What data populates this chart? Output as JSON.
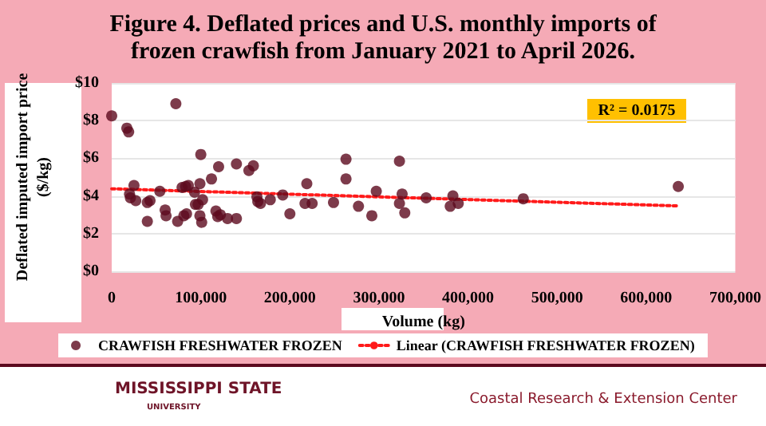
{
  "chart_data": {
    "type": "scatter",
    "title": "Figure 4. Deflated prices and U.S. monthly imports of\nfrozen crawfish from January 2021 to April 2026.",
    "xlabel": "Volume (kg)",
    "ylabel": "Deflated imputed import price\n($/kg)",
    "annotations": [
      "R² = 0.0175",
      "MISSISSIPPI STATE",
      "UNIVERSITY",
      "Coastal Research & Extension Center"
    ],
    "series": [
      {
        "name": "CRAWFISH FRESHWATER FROZEN",
        "color": "#5c0a1e",
        "marker": "circle",
        "x": [
          0,
          17000,
          19000,
          72000,
          20000,
          21000,
          25000,
          27000,
          40000,
          43000,
          40000,
          54000,
          60000,
          61000,
          74000,
          79000,
          83000,
          86000,
          81000,
          84000,
          93000,
          94000,
          97000,
          99000,
          100000,
          102000,
          99000,
          101000,
          112000,
          120000,
          117000,
          119000,
          122000,
          130000,
          140000,
          140000,
          154000,
          159000,
          163000,
          164000,
          167000,
          178000,
          192000,
          200000,
          219000,
          217000,
          225000,
          249000,
          263000,
          263000,
          277000,
          292000,
          297000,
          323000,
          323000,
          326000,
          329000,
          353000,
          380000,
          383000,
          389000,
          462000,
          636000
        ],
        "values": [
          8.25,
          7.6,
          7.4,
          8.9,
          4.1,
          3.9,
          4.55,
          3.75,
          3.65,
          3.75,
          2.65,
          4.25,
          3.25,
          2.95,
          2.65,
          4.45,
          4.5,
          4.55,
          2.95,
          3.05,
          4.2,
          3.55,
          3.55,
          4.65,
          6.2,
          3.8,
          2.95,
          2.6,
          4.9,
          5.55,
          3.2,
          2.9,
          3.0,
          2.8,
          5.7,
          2.8,
          5.35,
          5.6,
          3.95,
          3.7,
          3.6,
          3.8,
          4.05,
          3.05,
          4.65,
          3.6,
          3.6,
          3.65,
          4.9,
          5.95,
          3.45,
          2.95,
          4.25,
          5.85,
          3.6,
          4.1,
          3.1,
          3.9,
          3.45,
          4.0,
          3.6,
          3.85,
          4.5
        ]
      },
      {
        "name": "Linear (CRAWFISH FRESHWATER FROZEN)",
        "type": "line",
        "color": "#ff1a1a",
        "line_style": "dotted",
        "marker": "none",
        "x": [
          0,
          636000
        ],
        "values": [
          4.38,
          3.47
        ]
      }
    ],
    "xlim": [
      0,
      700000
    ],
    "xticks": [
      0,
      {
        "value": 100000,
        "label": "100,000"
      },
      {
        "value": 200000,
        "label": "200,000"
      },
      {
        "value": 300000,
        "label": "300,000"
      },
      {
        "value": 400000,
        "label": "400,000"
      },
      {
        "value": 500000,
        "label": "500,000"
      },
      {
        "value": 600000,
        "label": "600,000"
      },
      {
        "value": 700000,
        "label": "700,000"
      }
    ],
    "ylim": [
      0,
      10
    ],
    "yticks": [
      {
        "value": 0,
        "label": "$0"
      },
      {
        "value": 2,
        "label": "$2"
      },
      {
        "value": 4,
        "label": "$4"
      },
      {
        "value": 6,
        "label": "$6"
      },
      {
        "value": 8,
        "label": "$8"
      },
      {
        "value": 10,
        "label": "$10"
      }
    ],
    "grid": "y",
    "legend": "bottom"
  }
}
